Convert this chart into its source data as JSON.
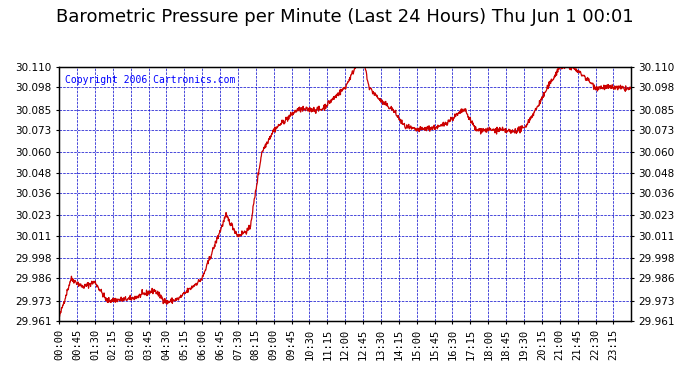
{
  "title": "Barometric Pressure per Minute (Last 24 Hours) Thu Jun 1 00:01",
  "copyright": "Copyright 2006 Cartronics.com",
  "line_color": "#cc0000",
  "background_color": "#ffffff",
  "plot_bg_color": "#ffffff",
  "grid_color": "#0000cc",
  "border_color": "#000000",
  "yticks": [
    29.961,
    29.973,
    29.986,
    29.998,
    30.011,
    30.023,
    30.036,
    30.048,
    30.06,
    30.073,
    30.085,
    30.098,
    30.11
  ],
  "ylim": [
    29.961,
    30.11
  ],
  "xtick_labels": [
    "00:00",
    "00:45",
    "01:30",
    "02:15",
    "03:00",
    "03:45",
    "04:30",
    "05:15",
    "06:00",
    "06:45",
    "07:30",
    "08:15",
    "09:00",
    "09:45",
    "10:30",
    "11:15",
    "12:00",
    "12:45",
    "13:30",
    "14:15",
    "15:00",
    "15:45",
    "16:30",
    "17:15",
    "18:00",
    "18:45",
    "19:30",
    "20:15",
    "21:00",
    "21:45",
    "22:30",
    "23:15"
  ],
  "title_fontsize": 13,
  "copyright_fontsize": 7,
  "tick_fontsize": 7.5,
  "keypoints_t": [
    0,
    30,
    60,
    90,
    120,
    180,
    240,
    270,
    300,
    360,
    420,
    450,
    480,
    510,
    540,
    600,
    660,
    720,
    750,
    765,
    780,
    810,
    840,
    870,
    900,
    960,
    1020,
    1050,
    1080,
    1110,
    1140,
    1170,
    1200,
    1230,
    1260,
    1290,
    1320,
    1350,
    1395,
    1439
  ],
  "keypoints_v": [
    29.963,
    29.986,
    29.981,
    29.984,
    29.973,
    29.974,
    29.979,
    29.972,
    29.974,
    29.986,
    30.023,
    30.011,
    30.015,
    30.06,
    30.073,
    30.085,
    30.085,
    30.098,
    30.112,
    30.116,
    30.098,
    30.09,
    30.085,
    30.075,
    30.073,
    30.075,
    30.085,
    30.073,
    30.073,
    30.073,
    30.072,
    30.074,
    30.085,
    30.098,
    30.11,
    30.11,
    30.105,
    30.098,
    30.098,
    30.097
  ]
}
